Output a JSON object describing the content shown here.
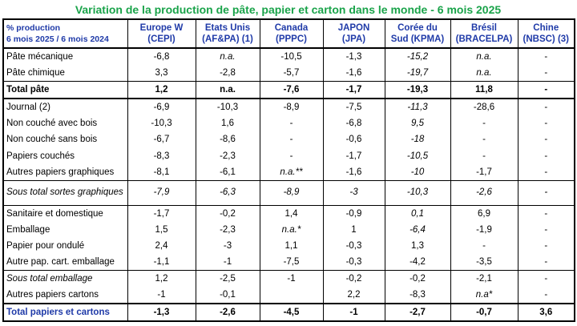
{
  "title": "Variation de la production de pâte, papier et carton dans le monde - 6 mois 2025",
  "header": {
    "col0": [
      "% production",
      "6 mois 2025 / 6 mois 2024"
    ],
    "columns": [
      [
        "Europe  W",
        "(CEPI)"
      ],
      [
        "Etats Unis",
        "(AF&PA) (1)"
      ],
      [
        "Canada",
        "(PPPC)"
      ],
      [
        "JAPON",
        "(JPA)"
      ],
      [
        "Corée du",
        "Sud  (KPMA)"
      ],
      [
        "Brésil",
        "(BRACELPA)"
      ],
      [
        "Chine",
        "(NBSC) (3)"
      ]
    ]
  },
  "rows": [
    {
      "label": "Pâte mécanique",
      "values": [
        "-6,8",
        "n.a.",
        "-10,5",
        "-1,3",
        "-15,2",
        "n.a.",
        "-"
      ]
    },
    {
      "label": "Pâte chimique",
      "values": [
        "3,3",
        "-2,8",
        "-5,7",
        "-1,6",
        "-19,7",
        "n.a.",
        "-"
      ]
    },
    {
      "label": "Total pâte",
      "values": [
        "1,2",
        "n.a.",
        "-7,6",
        "-1,7",
        "-19,3",
        "11,8",
        "-"
      ]
    },
    {
      "label": "Journal (2)",
      "values": [
        "-6,9",
        "-10,3",
        "-8,9",
        "-7,5",
        "-11,3",
        "-28,6",
        "-"
      ]
    },
    {
      "label": "Non couché avec bois",
      "values": [
        "-10,3",
        "1,6",
        "-",
        "-6,8",
        "9,5",
        "-",
        "-"
      ]
    },
    {
      "label": "Non couché sans bois",
      "values": [
        "-6,7",
        "-8,6",
        "-",
        "-0,6",
        "-18",
        "-",
        "-"
      ]
    },
    {
      "label": "Papiers couchés",
      "values": [
        "-8,3",
        "-2,3",
        "-",
        "-1,7",
        "-10,5",
        "-",
        "-"
      ]
    },
    {
      "label": "Autres papiers graphiques",
      "values": [
        "-8,1",
        "-6,1",
        "n.a.**",
        "-1,6",
        "-10",
        "-1,7",
        "-"
      ]
    },
    {
      "label": "Sous total sortes graphiques",
      "values": [
        "-7,9",
        "-6,3",
        "-8,9",
        "-3",
        "-10,3",
        "-2,6",
        "-"
      ]
    },
    {
      "label": "Sanitaire et domestique",
      "values": [
        "-1,7",
        "-0,2",
        "1,4",
        "-0,9",
        "0,1",
        "6,9",
        "-"
      ]
    },
    {
      "label": "Emballage",
      "values": [
        "1,5",
        "-2,3",
        "n.a.*",
        "1",
        "-6,4",
        "-1,9",
        "-"
      ]
    },
    {
      "label": "Papier pour ondulé",
      "values": [
        "2,4",
        "-3",
        "1,1",
        "-0,3",
        "1,3",
        "-",
        "-"
      ]
    },
    {
      "label": "Autre pap. cart. emballage",
      "values": [
        "-1,1",
        "-1",
        "-7,5",
        "-0,3",
        "-4,2",
        "-3,5",
        "-"
      ]
    },
    {
      "label": "Sous total emballage",
      "values": [
        "1,2",
        "-2,5",
        "-1",
        "-0,2",
        "-0,2",
        "-2,1",
        "-"
      ]
    },
    {
      "label": "Autres papiers cartons",
      "values": [
        "-1",
        "-0,1",
        "",
        "2,2",
        "-8,3",
        "n.a*",
        "-"
      ]
    },
    {
      "label": "Total papiers et cartons",
      "values": [
        "-1,3",
        "-2,6",
        "-4,5",
        "-1",
        "-2,7",
        "-0,7",
        "3,6"
      ]
    }
  ]
}
